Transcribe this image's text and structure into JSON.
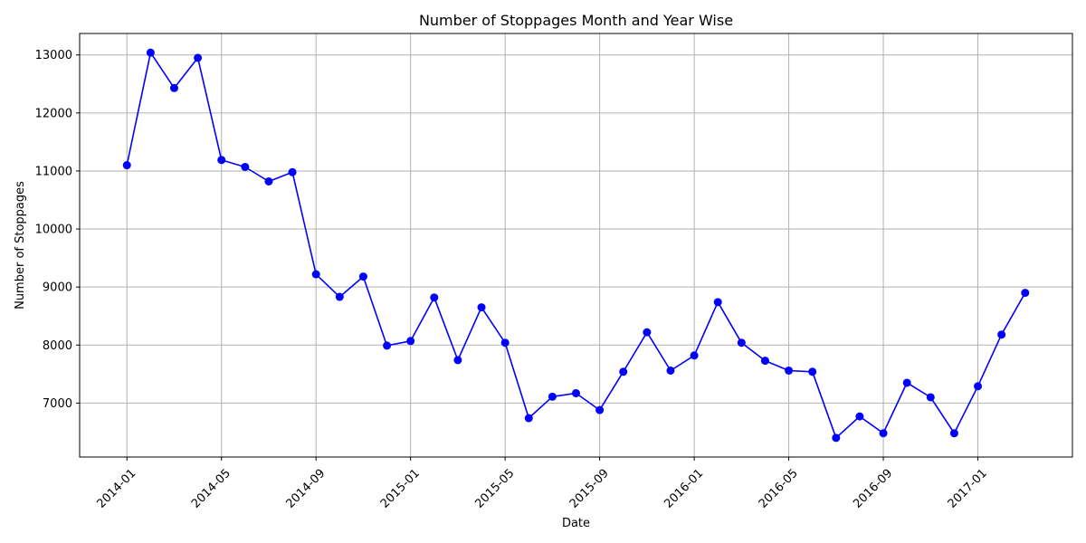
{
  "chart_data": {
    "type": "line",
    "title": "Number of Stoppages Month and Year Wise",
    "xlabel": "Date",
    "ylabel": "Number of Stoppages",
    "x_tick_labels": [
      "2014-01",
      "2014-05",
      "2014-09",
      "2015-01",
      "2015-05",
      "2015-09",
      "2016-01",
      "2016-05",
      "2016-09",
      "2017-01"
    ],
    "y_ticks": [
      7000,
      8000,
      9000,
      10000,
      11000,
      12000,
      13000
    ],
    "y_tick_labels": [
      "7000",
      "8000",
      "9000",
      "10000",
      "11000",
      "12000",
      "13000"
    ],
    "xlim": [
      "2013-11",
      "2017-05"
    ],
    "ylim": [
      6070,
      13370
    ],
    "grid": true,
    "color": "#0000ff",
    "marker": "circle",
    "series": [
      {
        "x": [
          "2014-01",
          "2014-02",
          "2014-03",
          "2014-04",
          "2014-05",
          "2014-06",
          "2014-07",
          "2014-08",
          "2014-09",
          "2014-10",
          "2014-11",
          "2014-12",
          "2015-01",
          "2015-02",
          "2015-03",
          "2015-04",
          "2015-05",
          "2015-06",
          "2015-07",
          "2015-08",
          "2015-09",
          "2015-10",
          "2015-11",
          "2015-12",
          "2016-01",
          "2016-02",
          "2016-03",
          "2016-04",
          "2016-05",
          "2016-06",
          "2016-07",
          "2016-08",
          "2016-09",
          "2016-10",
          "2016-11",
          "2016-12",
          "2017-01",
          "2017-02",
          "2017-03"
        ],
        "values": [
          11100,
          13040,
          12430,
          12950,
          11190,
          11070,
          10820,
          10980,
          9220,
          8830,
          9180,
          7990,
          8070,
          8820,
          7740,
          8650,
          8040,
          6740,
          7110,
          7170,
          6880,
          7540,
          8220,
          7560,
          7820,
          8740,
          8040,
          7730,
          7560,
          7540,
          6400,
          6770,
          6480,
          7350,
          7100,
          6480,
          7290,
          8180,
          8900
        ]
      }
    ]
  }
}
